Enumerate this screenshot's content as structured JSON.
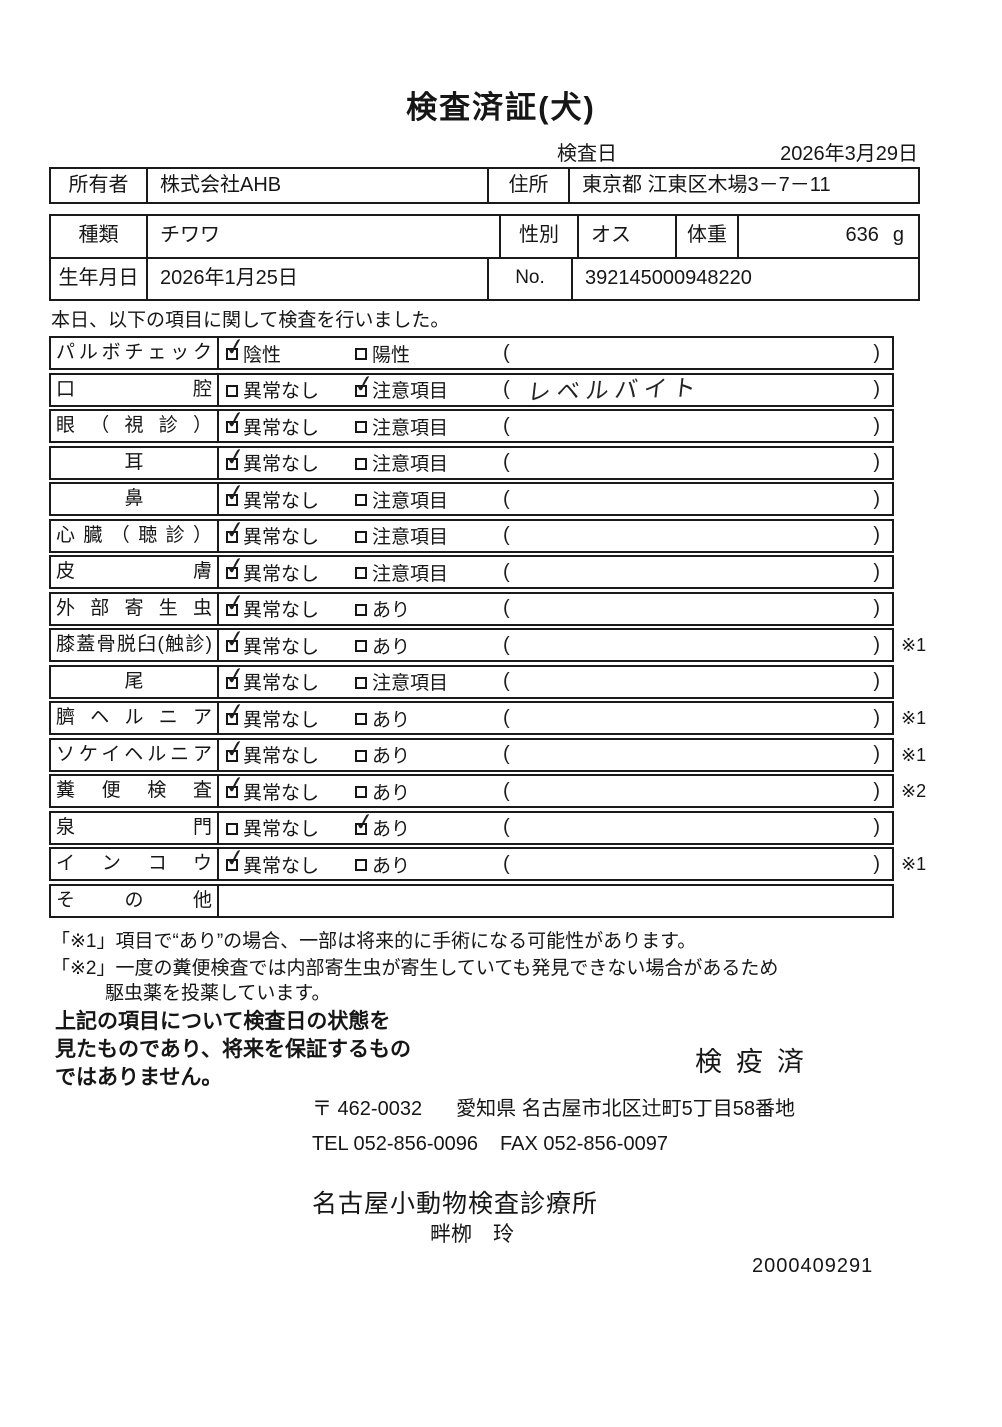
{
  "title": "検査済証(犬)",
  "header": {
    "date_label": "検査日",
    "date_value": "2026年3月29日"
  },
  "owner": {
    "label": "所有者",
    "value": "株式会社AHB",
    "address_label": "住所",
    "address_value": "東京都 江東区木場3－7－11"
  },
  "animal": {
    "breed_label": "種類",
    "breed_value": "チワワ",
    "sex_label": "性別",
    "sex_value": "オス",
    "weight_label": "体重",
    "weight_value": "636",
    "weight_unit": "g",
    "birth_label": "生年月日",
    "birth_value": "2026年1月25日",
    "no_label": "No.",
    "no_value": "392145000948220"
  },
  "intro": "本日、以下の項目に関して検査を行いました。",
  "icons": {
    "checkmark": "✓"
  },
  "checklist": [
    {
      "label": "パルボチェック",
      "opt1": "陰性",
      "opt2": "陽性",
      "checked": 1,
      "note": "",
      "suffix": ""
    },
    {
      "label": "口腔",
      "opt1": "異常なし",
      "opt2": "注意項目",
      "checked": 2,
      "note": "レベルバイト",
      "suffix": ""
    },
    {
      "label": "眼（視診）",
      "opt1": "異常なし",
      "opt2": "注意項目",
      "checked": 1,
      "note": "",
      "suffix": ""
    },
    {
      "label": "耳",
      "center": true,
      "opt1": "異常なし",
      "opt2": "注意項目",
      "checked": 1,
      "note": "",
      "suffix": ""
    },
    {
      "label": "鼻",
      "center": true,
      "opt1": "異常なし",
      "opt2": "注意項目",
      "checked": 1,
      "note": "",
      "suffix": ""
    },
    {
      "label": "心臓（聴診）",
      "opt1": "異常なし",
      "opt2": "注意項目",
      "checked": 1,
      "note": "",
      "suffix": ""
    },
    {
      "label": "皮膚",
      "opt1": "異常なし",
      "opt2": "注意項目",
      "checked": 1,
      "note": "",
      "suffix": ""
    },
    {
      "label": "外部寄生虫",
      "opt1": "異常なし",
      "opt2": "あり",
      "checked": 1,
      "note": "",
      "suffix": ""
    },
    {
      "label": "膝蓋骨脱臼(触診)",
      "opt1": "異常なし",
      "opt2": "あり",
      "checked": 1,
      "note": "",
      "suffix": "※1"
    },
    {
      "label": "尾",
      "center": true,
      "opt1": "異常なし",
      "opt2": "注意項目",
      "checked": 1,
      "note": "",
      "suffix": ""
    },
    {
      "label": "臍ヘルニア",
      "opt1": "異常なし",
      "opt2": "あり",
      "checked": 1,
      "note": "",
      "suffix": "※1"
    },
    {
      "label": "ソケイヘルニア",
      "opt1": "異常なし",
      "opt2": "あり",
      "checked": 1,
      "note": "",
      "suffix": "※1"
    },
    {
      "label": "糞便検査",
      "opt1": "異常なし",
      "opt2": "あり",
      "checked": 1,
      "note": "",
      "suffix": "※2"
    },
    {
      "label": "泉門",
      "opt1": "異常なし",
      "opt2": "あり",
      "checked": 2,
      "note": "",
      "suffix": ""
    },
    {
      "label": "インコウ",
      "opt1": "異常なし",
      "opt2": "あり",
      "checked": 1,
      "note": "",
      "suffix": "※1"
    },
    {
      "label": "その他",
      "empty": true,
      "note": "",
      "suffix": ""
    }
  ],
  "footnotes": {
    "note1": "「※1」項目で“あり”の場合、一部は将来的に手術になる可能性があります。",
    "note2_line1": "「※2」一度の糞便検査では内部寄生虫が寄生していても発見できない場合があるため",
    "note2_line2": "駆虫薬を投薬しています。"
  },
  "disclaimer": [
    "上記の項目について検査日の状態を",
    "見たものであり、将来を保証するもの",
    "ではありません。"
  ],
  "stamp": "検疫済",
  "footer": {
    "postal": "〒 462-0032",
    "address": "愛知県 名古屋市北区辻町5丁目58番地",
    "tel": "TEL 052-856-0096",
    "fax": "FAX 052-856-0097",
    "clinic": "名古屋小動物検査診療所",
    "vet": "畔栁　玲",
    "doc_no": "2000409291"
  }
}
